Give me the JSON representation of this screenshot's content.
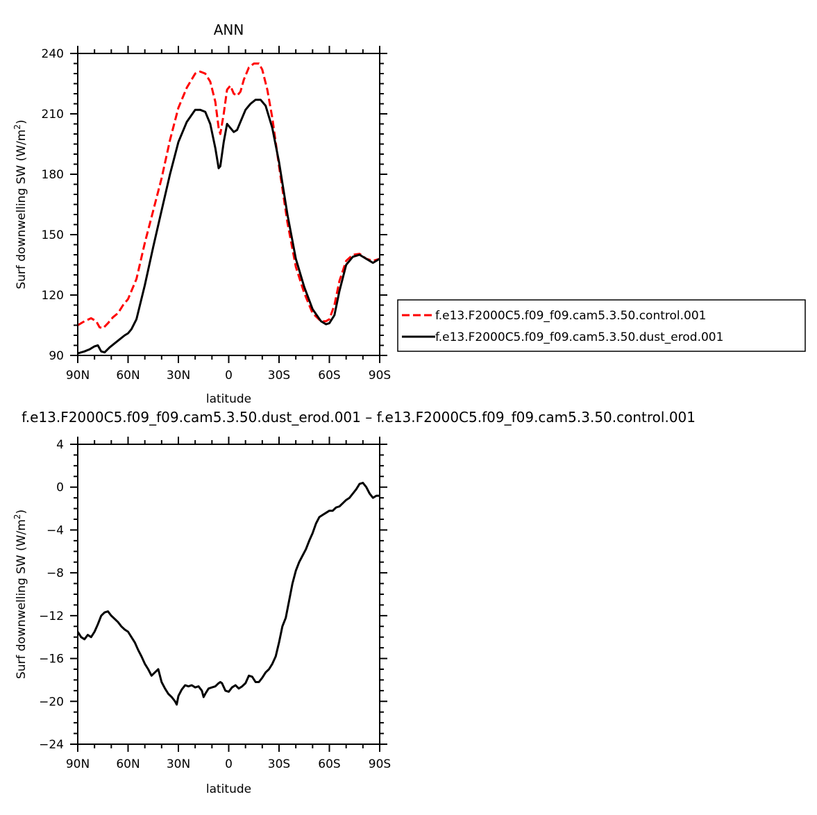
{
  "chart_data": [
    {
      "type": "line",
      "title": "ANN",
      "xlabel": "latitude",
      "ylabel": "Surf downwelling SW (W/m²)",
      "ylabel_main": "Surf downwelling SW (W/m",
      "ylabel_sup": "2",
      "ylabel_close": ")",
      "xlim": [
        90,
        -90
      ],
      "ylim": [
        90,
        240
      ],
      "xticks": [
        90,
        60,
        30,
        0,
        -30,
        -60,
        -90
      ],
      "xtick_labels": [
        "90N",
        "60N",
        "30N",
        "0",
        "30S",
        "60S",
        "90S"
      ],
      "yticks": [
        90,
        120,
        150,
        180,
        210,
        240
      ],
      "ytick_labels": [
        "90",
        "120",
        "150",
        "180",
        "210",
        "240"
      ],
      "series": [
        {
          "name": "f.e13.F2000C5.f09_f09.cam5.3.50.control.001",
          "color": "#ff0000",
          "dash": "dashed",
          "x": [
            90,
            86,
            82,
            79,
            77,
            75,
            72,
            69,
            66,
            63,
            60,
            55,
            50,
            45,
            40,
            35,
            30,
            25,
            20,
            17,
            14,
            11,
            8,
            6,
            5,
            3,
            1,
            -1,
            -3,
            -5,
            -7,
            -9,
            -12,
            -15,
            -18,
            -20,
            -23,
            -26,
            -30,
            -35,
            -40,
            -45,
            -50,
            -55,
            -58,
            -60,
            -63,
            -66,
            -70,
            -74,
            -78,
            -82,
            -86,
            -90
          ],
          "y": [
            105,
            107,
            108.5,
            107,
            104,
            103.5,
            106,
            109,
            111,
            115,
            118,
            128,
            146,
            162,
            178,
            197,
            213,
            223,
            230,
            231,
            230,
            226,
            216,
            203,
            200,
            210,
            222,
            224,
            220,
            219,
            221,
            227,
            233,
            235,
            235,
            232,
            222,
            208,
            184,
            156,
            134,
            121,
            111,
            107,
            107,
            108,
            115,
            127,
            137,
            140,
            140.5,
            138,
            137,
            138
          ]
        },
        {
          "name": "f.e13.F2000C5.f09_f09.cam5.3.50.dust_erod.001",
          "color": "#000000",
          "dash": "solid",
          "x": [
            90,
            86,
            83,
            80,
            78,
            76,
            74,
            71,
            68,
            65,
            62,
            60,
            58,
            55,
            50,
            45,
            40,
            35,
            30,
            25,
            20,
            17,
            14,
            11,
            8,
            6,
            5,
            3,
            1,
            -1,
            -3,
            -5,
            -7,
            -10,
            -13,
            -16,
            -19,
            -22,
            -26,
            -30,
            -35,
            -40,
            -45,
            -50,
            -55,
            -58,
            -60,
            -63,
            -66,
            -70,
            -74,
            -78,
            -82,
            -86,
            -90
          ],
          "y": [
            91,
            92,
            93,
            94.5,
            95,
            92,
            91.5,
            94,
            96,
            98,
            100,
            101,
            103,
            108,
            125,
            144,
            162,
            180,
            196,
            206,
            212,
            212,
            211,
            205,
            193,
            183,
            184,
            196,
            205,
            203,
            201,
            202,
            206,
            212,
            215,
            217,
            217,
            214,
            203,
            186,
            160,
            138,
            124,
            113,
            107,
            105.5,
            106,
            110,
            122,
            135,
            139,
            140,
            138,
            136,
            138
          ]
        }
      ],
      "legend": {
        "position": "right-of-plot",
        "entries": [
          "f.e13.F2000C5.f09_f09.cam5.3.50.control.001",
          "f.e13.F2000C5.f09_f09.cam5.3.50.dust_erod.001"
        ]
      }
    },
    {
      "type": "line",
      "title": "f.e13.F2000C5.f09_f09.cam5.3.50.dust_erod.001  –  f.e13.F2000C5.f09_f09.cam5.3.50.control.001",
      "xlabel": "latitude",
      "ylabel": "Surf downwelling SW (W/m²)",
      "ylabel_main": "Surf downwelling SW (W/m",
      "ylabel_sup": "2",
      "ylabel_close": ")",
      "xlim": [
        90,
        -90
      ],
      "ylim": [
        -24,
        4
      ],
      "xticks": [
        90,
        60,
        30,
        0,
        -30,
        -60,
        -90
      ],
      "xtick_labels": [
        "90N",
        "60N",
        "30N",
        "0",
        "30S",
        "60S",
        "90S"
      ],
      "yticks": [
        -24,
        -20,
        -16,
        -12,
        -8,
        -4,
        0,
        4
      ],
      "ytick_labels": [
        "−24",
        "−20",
        "−16",
        "−12",
        "−8",
        "−4",
        "0",
        "4"
      ],
      "series": [
        {
          "name": "dust_erod.001 − control.001",
          "color": "#000000",
          "dash": "solid",
          "x": [
            90,
            88,
            86,
            84,
            82,
            80,
            78,
            76,
            74,
            72,
            70,
            68,
            66,
            64,
            62,
            60,
            58,
            56,
            54,
            52,
            50,
            48,
            46,
            44,
            42,
            40,
            38,
            36,
            34,
            32,
            31,
            30,
            28,
            26,
            24,
            22,
            20,
            18,
            16,
            15,
            14,
            12,
            10,
            8,
            6,
            5,
            4,
            2,
            0,
            -2,
            -4,
            -6,
            -8,
            -10,
            -12,
            -14,
            -16,
            -18,
            -20,
            -22,
            -24,
            -26,
            -28,
            -30,
            -32,
            -34,
            -36,
            -38,
            -40,
            -42,
            -44,
            -46,
            -48,
            -50,
            -52,
            -54,
            -56,
            -58,
            -60,
            -62,
            -64,
            -66,
            -68,
            -70,
            -72,
            -74,
            -76,
            -78,
            -80,
            -82,
            -84,
            -86,
            -88,
            -90
          ],
          "y": [
            -13.5,
            -14,
            -14.2,
            -13.8,
            -14,
            -13.5,
            -12.8,
            -12,
            -11.7,
            -11.6,
            -12,
            -12.3,
            -12.6,
            -13,
            -13.3,
            -13.5,
            -14,
            -14.5,
            -15.2,
            -15.8,
            -16.5,
            -17,
            -17.6,
            -17.3,
            -17,
            -18.2,
            -18.8,
            -19.3,
            -19.6,
            -20,
            -20.3,
            -19.5,
            -18.9,
            -18.5,
            -18.6,
            -18.5,
            -18.7,
            -18.6,
            -19,
            -19.6,
            -19.3,
            -18.8,
            -18.7,
            -18.6,
            -18.3,
            -18.2,
            -18.3,
            -19,
            -19.1,
            -18.7,
            -18.5,
            -18.8,
            -18.6,
            -18.3,
            -17.6,
            -17.7,
            -18.2,
            -18.2,
            -17.8,
            -17.3,
            -17,
            -16.5,
            -15.8,
            -14.5,
            -13,
            -12.2,
            -10.6,
            -9,
            -7.8,
            -7,
            -6.4,
            -5.8,
            -5,
            -4.3,
            -3.4,
            -2.8,
            -2.6,
            -2.4,
            -2.2,
            -2.2,
            -1.9,
            -1.8,
            -1.5,
            -1.2,
            -1,
            -0.6,
            -0.2,
            0.3,
            0.4,
            0,
            -0.6,
            -1,
            -0.8,
            -0.8
          ]
        }
      ]
    }
  ]
}
